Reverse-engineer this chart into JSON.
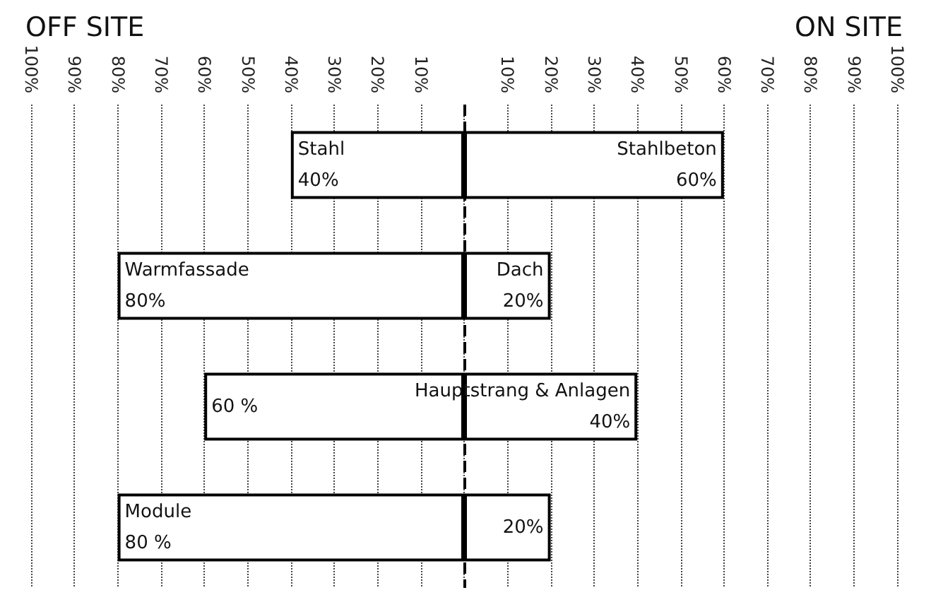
{
  "chart_data": {
    "type": "bar",
    "orientation": "horizontal",
    "categories": [
      null,
      null,
      null,
      null
    ],
    "series": [
      {
        "color": "#ffffff",
        "base": [
          -40,
          -80,
          -60,
          -80
        ],
        "values": [
          40,
          80,
          60,
          80
        ],
        "value_labels": [
          "Stahl\n40%",
          "Warmfassade\n80%",
          "60 %",
          "Module\n80 %"
        ]
      },
      {
        "color": "#ffffff",
        "values": [
          60,
          20,
          40,
          20
        ],
        "value_labels": [
          "Stahlbeton\n60%",
          "Dach\n20%",
          "Hauptstrang & Anlagen\n40%",
          "20%"
        ]
      }
    ],
    "xlim": [
      -100,
      100
    ],
    "xticks": [
      {
        "value": -100,
        "label": "100%"
      },
      {
        "value": -90,
        "label": "90%"
      },
      {
        "value": -80,
        "label": "80%"
      },
      {
        "value": -70,
        "label": "70%"
      },
      {
        "value": -60,
        "label": "60%"
      },
      {
        "value": -50,
        "label": "50%"
      },
      {
        "value": -40,
        "label": "40%"
      },
      {
        "value": -30,
        "label": "30%"
      },
      {
        "value": -20,
        "label": "20%"
      },
      {
        "value": -10,
        "label": "10%"
      },
      {
        "value": 0,
        "label": null
      },
      {
        "value": 10,
        "label": "10%"
      },
      {
        "value": 20,
        "label": "20%"
      },
      {
        "value": 30,
        "label": "30%"
      },
      {
        "value": 40,
        "label": "40%"
      },
      {
        "value": 50,
        "label": "50%"
      },
      {
        "value": 60,
        "label": "60%"
      },
      {
        "value": 70,
        "label": "70%"
      },
      {
        "value": 80,
        "label": "80%"
      },
      {
        "value": 90,
        "label": "90%"
      },
      {
        "value": 100,
        "label": "100%"
      }
    ],
    "grid": "x",
    "ref_lines": [
      {
        "axis": "x",
        "value": 0,
        "line_style": "dashed",
        "color": "#000000"
      }
    ],
    "annotations": [
      "OFF SITE",
      "ON SITE"
    ]
  }
}
